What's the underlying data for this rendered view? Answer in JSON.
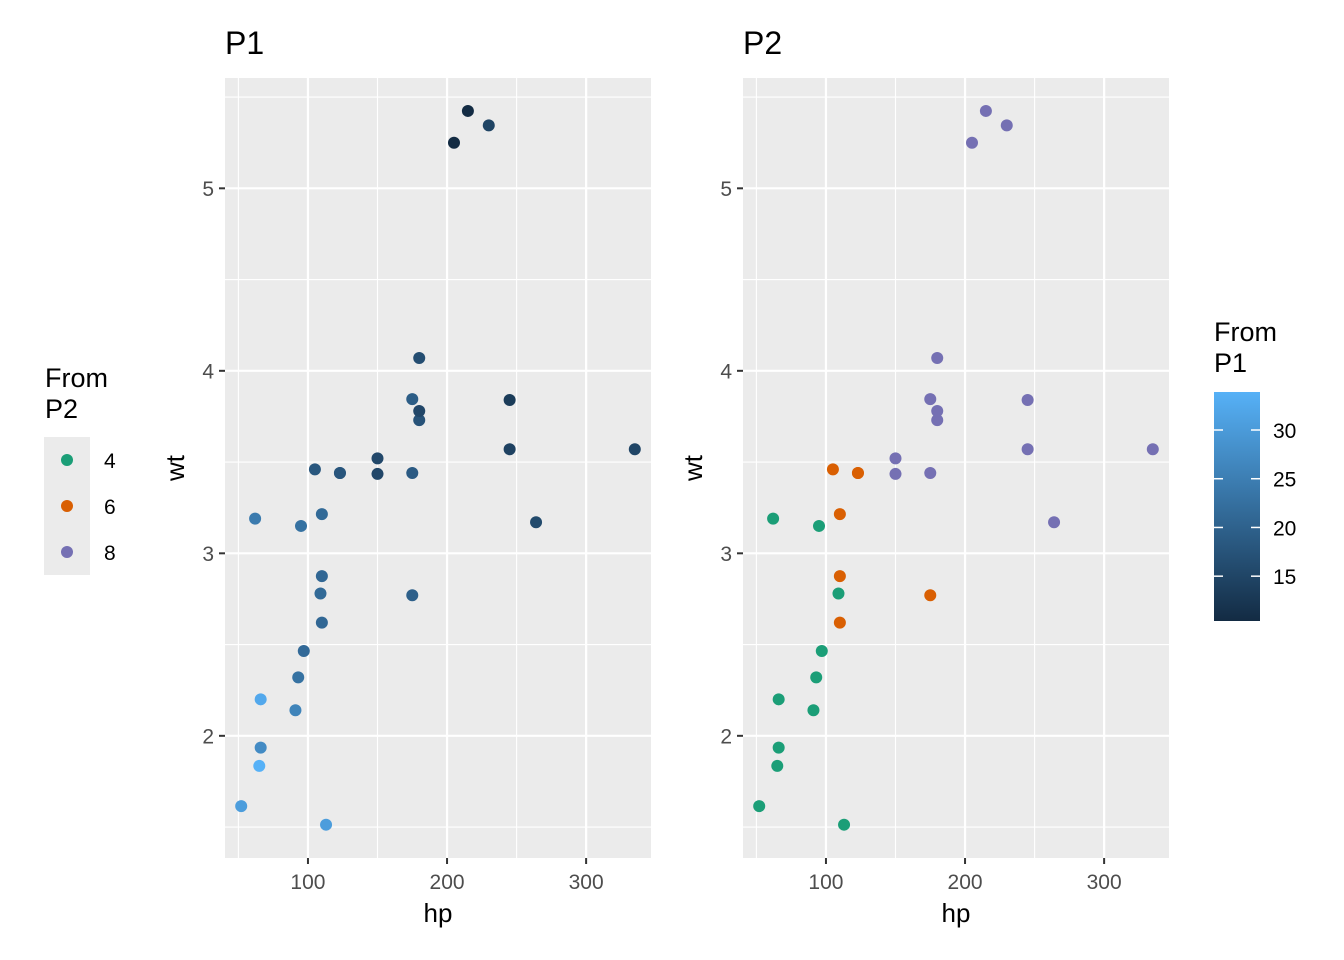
{
  "colors": {
    "panel_bg": "#EBEBEB",
    "grid": "#FFFFFF",
    "tick_text": "#4D4D4D",
    "cyl_4": "#1B9E77",
    "cyl_6": "#D95F02",
    "cyl_8": "#7570B3",
    "gradient_low": "#132B43",
    "gradient_high": "#56B1F7"
  },
  "legend_p2": {
    "title_line1": "From",
    "title_line2": "P2",
    "items": [
      {
        "label": "4",
        "color": "#1B9E77"
      },
      {
        "label": "6",
        "color": "#D95F02"
      },
      {
        "label": "8",
        "color": "#7570B3"
      }
    ]
  },
  "legend_p1": {
    "title_line1": "From",
    "title_line2": "P1",
    "min": 10.4,
    "max": 33.9,
    "ticks": [
      "15",
      "20",
      "25",
      "30"
    ],
    "tick_values": [
      15,
      20,
      25,
      30
    ]
  },
  "chart_data": [
    {
      "type": "scatter",
      "title": "P1",
      "xlabel": "hp",
      "ylabel": "wt",
      "xlim": [
        40.35,
        346.65
      ],
      "ylim": [
        1.3305,
        5.6045
      ],
      "xticks": [
        "100",
        "200",
        "300"
      ],
      "yticks": [
        "2",
        "3",
        "4",
        "5"
      ],
      "color_by": "mpg",
      "points": [
        {
          "x": 110,
          "y": 2.62,
          "mpg": 21.0
        },
        {
          "x": 110,
          "y": 2.875,
          "mpg": 21.0
        },
        {
          "x": 93,
          "y": 2.32,
          "mpg": 22.8
        },
        {
          "x": 110,
          "y": 3.215,
          "mpg": 21.4
        },
        {
          "x": 175,
          "y": 3.44,
          "mpg": 18.7
        },
        {
          "x": 105,
          "y": 3.46,
          "mpg": 18.1
        },
        {
          "x": 245,
          "y": 3.57,
          "mpg": 14.3
        },
        {
          "x": 62,
          "y": 3.19,
          "mpg": 24.4
        },
        {
          "x": 95,
          "y": 3.15,
          "mpg": 22.8
        },
        {
          "x": 123,
          "y": 3.44,
          "mpg": 19.2
        },
        {
          "x": 123,
          "y": 3.44,
          "mpg": 17.8
        },
        {
          "x": 180,
          "y": 4.07,
          "mpg": 16.4
        },
        {
          "x": 180,
          "y": 3.73,
          "mpg": 17.3
        },
        {
          "x": 180,
          "y": 3.78,
          "mpg": 15.2
        },
        {
          "x": 205,
          "y": 5.25,
          "mpg": 10.4
        },
        {
          "x": 215,
          "y": 5.424,
          "mpg": 10.4
        },
        {
          "x": 230,
          "y": 5.345,
          "mpg": 14.7
        },
        {
          "x": 66,
          "y": 2.2,
          "mpg": 32.4
        },
        {
          "x": 52,
          "y": 1.615,
          "mpg": 30.4
        },
        {
          "x": 65,
          "y": 1.835,
          "mpg": 33.9
        },
        {
          "x": 97,
          "y": 2.465,
          "mpg": 21.5
        },
        {
          "x": 150,
          "y": 3.52,
          "mpg": 15.5
        },
        {
          "x": 150,
          "y": 3.435,
          "mpg": 15.2
        },
        {
          "x": 245,
          "y": 3.84,
          "mpg": 13.3
        },
        {
          "x": 175,
          "y": 3.845,
          "mpg": 19.2
        },
        {
          "x": 66,
          "y": 1.935,
          "mpg": 27.3
        },
        {
          "x": 91,
          "y": 2.14,
          "mpg": 26.0
        },
        {
          "x": 113,
          "y": 1.513,
          "mpg": 30.4
        },
        {
          "x": 264,
          "y": 3.17,
          "mpg": 15.8
        },
        {
          "x": 175,
          "y": 2.77,
          "mpg": 19.7
        },
        {
          "x": 335,
          "y": 3.57,
          "mpg": 15.0
        },
        {
          "x": 109,
          "y": 2.78,
          "mpg": 21.4
        }
      ]
    },
    {
      "type": "scatter",
      "title": "P2",
      "xlabel": "hp",
      "ylabel": "wt",
      "xlim": [
        40.35,
        346.65
      ],
      "ylim": [
        1.3305,
        5.6045
      ],
      "xticks": [
        "100",
        "200",
        "300"
      ],
      "yticks": [
        "2",
        "3",
        "4",
        "5"
      ],
      "color_by": "cyl",
      "points": [
        {
          "x": 110,
          "y": 2.62,
          "cyl": 6
        },
        {
          "x": 110,
          "y": 2.875,
          "cyl": 6
        },
        {
          "x": 93,
          "y": 2.32,
          "cyl": 4
        },
        {
          "x": 110,
          "y": 3.215,
          "cyl": 6
        },
        {
          "x": 175,
          "y": 3.44,
          "cyl": 8
        },
        {
          "x": 105,
          "y": 3.46,
          "cyl": 6
        },
        {
          "x": 245,
          "y": 3.57,
          "cyl": 8
        },
        {
          "x": 62,
          "y": 3.19,
          "cyl": 4
        },
        {
          "x": 95,
          "y": 3.15,
          "cyl": 4
        },
        {
          "x": 123,
          "y": 3.44,
          "cyl": 6
        },
        {
          "x": 123,
          "y": 3.44,
          "cyl": 6
        },
        {
          "x": 180,
          "y": 4.07,
          "cyl": 8
        },
        {
          "x": 180,
          "y": 3.73,
          "cyl": 8
        },
        {
          "x": 180,
          "y": 3.78,
          "cyl": 8
        },
        {
          "x": 205,
          "y": 5.25,
          "cyl": 8
        },
        {
          "x": 215,
          "y": 5.424,
          "cyl": 8
        },
        {
          "x": 230,
          "y": 5.345,
          "cyl": 8
        },
        {
          "x": 66,
          "y": 2.2,
          "cyl": 4
        },
        {
          "x": 52,
          "y": 1.615,
          "cyl": 4
        },
        {
          "x": 65,
          "y": 1.835,
          "cyl": 4
        },
        {
          "x": 97,
          "y": 2.465,
          "cyl": 4
        },
        {
          "x": 150,
          "y": 3.52,
          "cyl": 8
        },
        {
          "x": 150,
          "y": 3.435,
          "cyl": 8
        },
        {
          "x": 245,
          "y": 3.84,
          "cyl": 8
        },
        {
          "x": 175,
          "y": 3.845,
          "cyl": 8
        },
        {
          "x": 66,
          "y": 1.935,
          "cyl": 4
        },
        {
          "x": 91,
          "y": 2.14,
          "cyl": 4
        },
        {
          "x": 113,
          "y": 1.513,
          "cyl": 4
        },
        {
          "x": 264,
          "y": 3.17,
          "cyl": 8
        },
        {
          "x": 175,
          "y": 2.77,
          "cyl": 6
        },
        {
          "x": 335,
          "y": 3.57,
          "cyl": 8
        },
        {
          "x": 109,
          "y": 2.78,
          "cyl": 4
        }
      ]
    }
  ]
}
